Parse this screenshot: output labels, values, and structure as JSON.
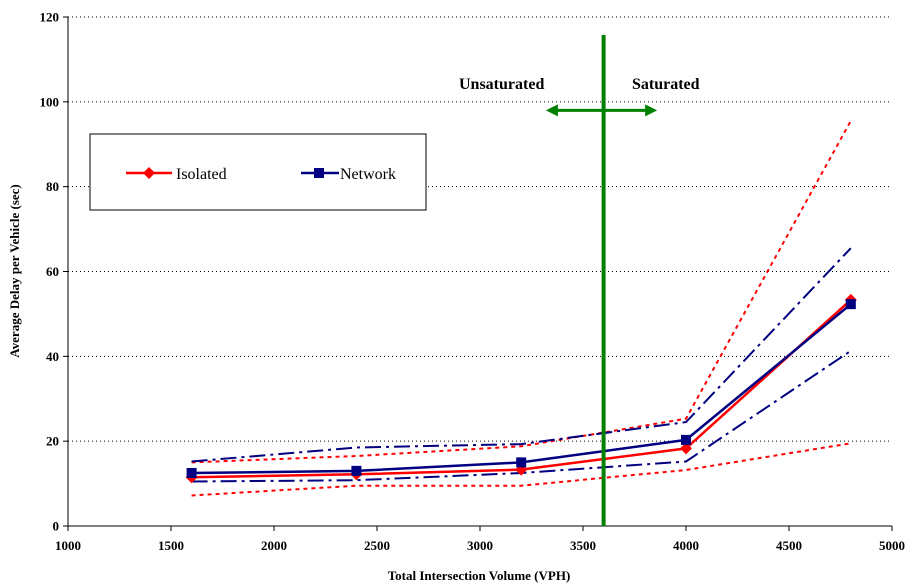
{
  "chart_data": {
    "type": "line",
    "xlabel": "Total Intersection Volume (VPH)",
    "ylabel": "Average Delay per Vehicle (sec)",
    "xlim": [
      1000,
      5000
    ],
    "ylim": [
      0,
      120
    ],
    "xticks": [
      1000,
      1500,
      2000,
      2500,
      3000,
      3500,
      4000,
      4500,
      5000
    ],
    "yticks": [
      0,
      20,
      40,
      60,
      80,
      100,
      120
    ],
    "grid": "horizontal-dotted",
    "legend_position": "upper-left",
    "x": [
      1600,
      2400,
      3200,
      4000,
      4800
    ],
    "series": [
      {
        "name": "Isolated",
        "color": "#ff0000",
        "marker": "diamond",
        "line": "solid",
        "values": [
          11.5,
          12.2,
          13.3,
          18.3,
          53.3
        ]
      },
      {
        "name": "Network",
        "color": "#000080",
        "marker": "square",
        "line": "solid",
        "values": [
          12.5,
          13.0,
          15.0,
          20.3,
          52.3
        ]
      },
      {
        "color": "#ff0000",
        "line": "dotted",
        "values": [
          15.0,
          16.5,
          18.8,
          25.3,
          95.5
        ]
      },
      {
        "color": "#ff0000",
        "line": "dotted",
        "values": [
          7.2,
          9.5,
          9.5,
          13.2,
          19.5
        ]
      },
      {
        "color": "#000080",
        "line": "dash-dot",
        "values": [
          15.2,
          18.5,
          19.3,
          24.5,
          65.5
        ]
      },
      {
        "color": "#000080",
        "line": "dash-dot",
        "values": [
          10.5,
          10.8,
          12.5,
          15.2,
          41.3
        ]
      }
    ],
    "divider": {
      "x": 3600,
      "color": "#008000",
      "label_left": "Unsaturated",
      "label_right": "Saturated",
      "arrow_y": 98,
      "arrow_from": 3320,
      "arrow_to": 3860
    }
  }
}
